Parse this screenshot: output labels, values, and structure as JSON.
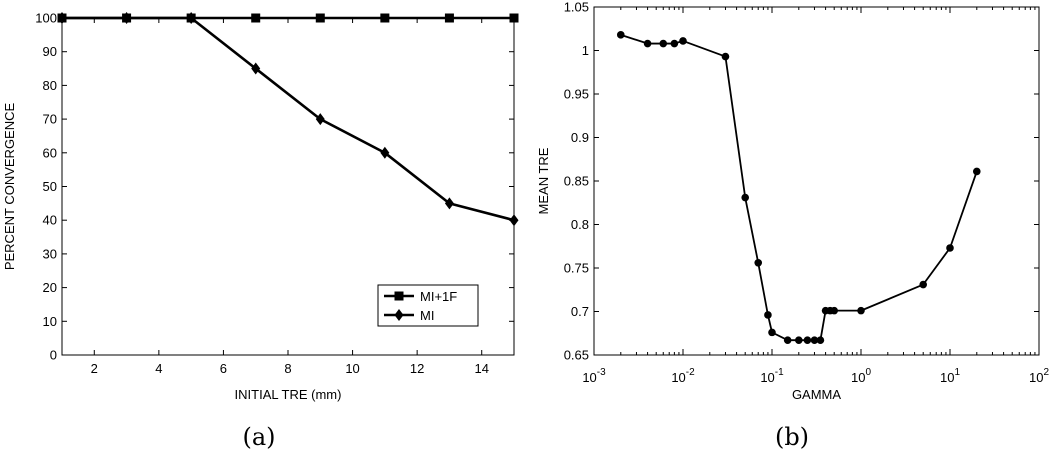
{
  "chart_data": [
    {
      "type": "line",
      "caption": "(a)",
      "xlabel": "INITIAL TRE (mm)",
      "ylabel": "PERCENT CONVERGENCE",
      "xlim": [
        1,
        15
      ],
      "ylim": [
        0,
        100
      ],
      "xticks": [
        2,
        4,
        6,
        8,
        10,
        12,
        14
      ],
      "yticks": [
        0,
        10,
        20,
        30,
        40,
        50,
        60,
        70,
        80,
        90,
        100
      ],
      "grid": false,
      "legend_position": "bottom-right",
      "x": [
        1,
        3,
        5,
        7,
        9,
        11,
        13,
        15
      ],
      "series": [
        {
          "name": "MI+1F",
          "marker": "square",
          "values": [
            100,
            100,
            100,
            100,
            100,
            100,
            100,
            100
          ]
        },
        {
          "name": "MI",
          "marker": "diamond",
          "values": [
            100,
            100,
            100,
            85,
            70,
            60,
            45,
            40
          ]
        }
      ]
    },
    {
      "type": "line",
      "caption": "(b)",
      "xlabel": "GAMMA",
      "ylabel": "MEAN TRE",
      "xscale": "log",
      "xlim": [
        0.001,
        100
      ],
      "ylim": [
        0.65,
        1.05
      ],
      "xtick_exponents": [
        "-3",
        "-2",
        "-1",
        "0",
        "1",
        "2"
      ],
      "yticks": [
        "0.65",
        "0.7",
        "0.75",
        "0.8",
        "0.85",
        "0.9",
        "0.95",
        "1",
        "1.05"
      ],
      "grid": false,
      "series": [
        {
          "marker": "circle",
          "x": [
            0.002,
            0.004,
            0.006,
            0.008,
            0.01,
            0.03,
            0.05,
            0.07,
            0.09,
            0.1,
            0.15,
            0.2,
            0.25,
            0.3,
            0.35,
            0.4,
            0.45,
            0.5,
            1,
            5,
            10,
            20
          ],
          "y": [
            1.018,
            1.008,
            1.008,
            1.008,
            1.011,
            0.993,
            0.831,
            0.756,
            0.696,
            0.676,
            0.667,
            0.667,
            0.667,
            0.667,
            0.667,
            0.701,
            0.701,
            0.701,
            0.701,
            0.731,
            0.773,
            0.861
          ]
        }
      ]
    }
  ]
}
